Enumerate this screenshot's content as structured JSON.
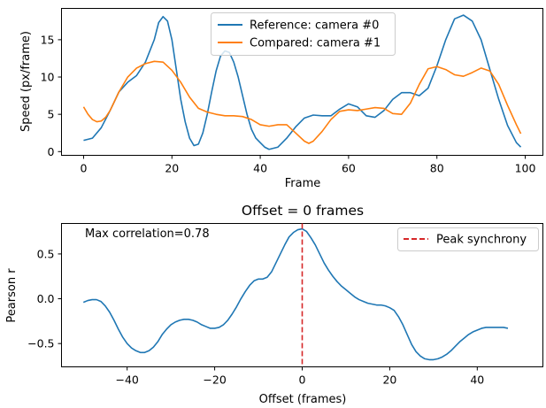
{
  "chart_data": [
    {
      "type": "line",
      "title": "",
      "xlabel": "Frame",
      "ylabel": "Speed (px/frame)",
      "xlim": [
        -5,
        104
      ],
      "ylim": [
        -0.5,
        19.2
      ],
      "xticks": [
        0,
        20,
        40,
        60,
        80,
        100
      ],
      "yticks": [
        0,
        5,
        10,
        15
      ],
      "grid": false,
      "legend_position": "top-center",
      "series": [
        {
          "name": "Reference: camera #0",
          "color": "#1f77b4",
          "points": [
            [
              0,
              1.5
            ],
            [
              2,
              1.8
            ],
            [
              4,
              3.2
            ],
            [
              6,
              5.5
            ],
            [
              8,
              8.0
            ],
            [
              10,
              9.3
            ],
            [
              12,
              10.2
            ],
            [
              14,
              12.0
            ],
            [
              16,
              15.0
            ],
            [
              17,
              17.3
            ],
            [
              18,
              18.1
            ],
            [
              19,
              17.5
            ],
            [
              20,
              15.0
            ],
            [
              21,
              11.0
            ],
            [
              22,
              7.0
            ],
            [
              23,
              4.0
            ],
            [
              24,
              1.8
            ],
            [
              25,
              0.8
            ],
            [
              26,
              1.0
            ],
            [
              27,
              2.5
            ],
            [
              28,
              5.0
            ],
            [
              29,
              8.0
            ],
            [
              30,
              10.8
            ],
            [
              31,
              12.8
            ],
            [
              32,
              13.5
            ],
            [
              33,
              13.3
            ],
            [
              34,
              12.0
            ],
            [
              35,
              10.0
            ],
            [
              36,
              7.5
            ],
            [
              37,
              5.0
            ],
            [
              38,
              3.0
            ],
            [
              39,
              1.8
            ],
            [
              40,
              1.2
            ],
            [
              41,
              0.6
            ],
            [
              42,
              0.3
            ],
            [
              44,
              0.6
            ],
            [
              46,
              1.8
            ],
            [
              48,
              3.3
            ],
            [
              50,
              4.5
            ],
            [
              52,
              4.9
            ],
            [
              54,
              4.8
            ],
            [
              56,
              4.8
            ],
            [
              58,
              5.7
            ],
            [
              60,
              6.4
            ],
            [
              62,
              6.0
            ],
            [
              64,
              4.8
            ],
            [
              66,
              4.6
            ],
            [
              68,
              5.5
            ],
            [
              70,
              7.0
            ],
            [
              72,
              7.9
            ],
            [
              74,
              7.9
            ],
            [
              76,
              7.5
            ],
            [
              78,
              8.5
            ],
            [
              80,
              11.5
            ],
            [
              82,
              15.0
            ],
            [
              84,
              17.8
            ],
            [
              86,
              18.3
            ],
            [
              88,
              17.5
            ],
            [
              90,
              15.0
            ],
            [
              92,
              11.0
            ],
            [
              94,
              7.0
            ],
            [
              96,
              3.5
            ],
            [
              98,
              1.2
            ],
            [
              99,
              0.6
            ]
          ]
        },
        {
          "name": "Compared: camera #1",
          "color": "#ff7f0e",
          "points": [
            [
              0,
              6.0
            ],
            [
              1,
              5.0
            ],
            [
              2,
              4.3
            ],
            [
              3,
              4.0
            ],
            [
              4,
              4.1
            ],
            [
              5,
              4.6
            ],
            [
              6,
              5.5
            ],
            [
              8,
              8.0
            ],
            [
              10,
              10.0
            ],
            [
              12,
              11.2
            ],
            [
              14,
              11.8
            ],
            [
              16,
              12.1
            ],
            [
              18,
              12.0
            ],
            [
              20,
              10.9
            ],
            [
              22,
              9.3
            ],
            [
              24,
              7.3
            ],
            [
              26,
              5.8
            ],
            [
              28,
              5.3
            ],
            [
              30,
              5.0
            ],
            [
              32,
              4.8
            ],
            [
              34,
              4.8
            ],
            [
              36,
              4.7
            ],
            [
              38,
              4.3
            ],
            [
              40,
              3.6
            ],
            [
              42,
              3.4
            ],
            [
              44,
              3.6
            ],
            [
              46,
              3.6
            ],
            [
              48,
              2.5
            ],
            [
              50,
              1.4
            ],
            [
              51,
              1.1
            ],
            [
              52,
              1.4
            ],
            [
              54,
              2.7
            ],
            [
              56,
              4.3
            ],
            [
              58,
              5.4
            ],
            [
              60,
              5.6
            ],
            [
              62,
              5.5
            ],
            [
              64,
              5.7
            ],
            [
              66,
              5.9
            ],
            [
              68,
              5.8
            ],
            [
              70,
              5.1
            ],
            [
              72,
              5.0
            ],
            [
              74,
              6.5
            ],
            [
              76,
              9.0
            ],
            [
              78,
              11.1
            ],
            [
              80,
              11.4
            ],
            [
              82,
              11.0
            ],
            [
              84,
              10.3
            ],
            [
              86,
              10.1
            ],
            [
              88,
              10.6
            ],
            [
              90,
              11.2
            ],
            [
              92,
              10.8
            ],
            [
              94,
              9.0
            ],
            [
              96,
              6.2
            ],
            [
              98,
              3.6
            ],
            [
              99,
              2.4
            ]
          ]
        }
      ]
    },
    {
      "type": "line",
      "title": "Offset = 0 frames",
      "xlabel": "Offset (frames)",
      "ylabel": "Pearson r",
      "xlim": [
        -55,
        55
      ],
      "ylim": [
        -0.76,
        0.84
      ],
      "xticks": [
        -40,
        -20,
        0,
        20,
        40
      ],
      "xtick_labels": [
        "−40",
        "−20",
        "0",
        "20",
        "40"
      ],
      "yticks": [
        0.5,
        0.0,
        -0.5
      ],
      "ytick_labels": [
        "0.5",
        "0.0",
        "−0.5"
      ],
      "grid": false,
      "legend_position": "top-right",
      "annotation": "Max correlation=0.78",
      "series": [
        {
          "name": "",
          "color": "#1f77b4",
          "points": [
            [
              -50,
              -0.04
            ],
            [
              -49,
              -0.02
            ],
            [
              -48,
              -0.01
            ],
            [
              -47,
              -0.01
            ],
            [
              -46,
              -0.03
            ],
            [
              -45,
              -0.08
            ],
            [
              -44,
              -0.15
            ],
            [
              -43,
              -0.24
            ],
            [
              -42,
              -0.34
            ],
            [
              -41,
              -0.43
            ],
            [
              -40,
              -0.5
            ],
            [
              -39,
              -0.55
            ],
            [
              -38,
              -0.58
            ],
            [
              -37,
              -0.6
            ],
            [
              -36,
              -0.6
            ],
            [
              -35,
              -0.58
            ],
            [
              -34,
              -0.54
            ],
            [
              -33,
              -0.48
            ],
            [
              -32,
              -0.4
            ],
            [
              -31,
              -0.34
            ],
            [
              -30,
              -0.29
            ],
            [
              -29,
              -0.26
            ],
            [
              -28,
              -0.24
            ],
            [
              -27,
              -0.23
            ],
            [
              -26,
              -0.23
            ],
            [
              -25,
              -0.24
            ],
            [
              -24,
              -0.26
            ],
            [
              -23,
              -0.29
            ],
            [
              -22,
              -0.31
            ],
            [
              -21,
              -0.33
            ],
            [
              -20,
              -0.33
            ],
            [
              -19,
              -0.32
            ],
            [
              -18,
              -0.29
            ],
            [
              -17,
              -0.24
            ],
            [
              -16,
              -0.17
            ],
            [
              -15,
              -0.09
            ],
            [
              -14,
              0.0
            ],
            [
              -13,
              0.08
            ],
            [
              -12,
              0.15
            ],
            [
              -11,
              0.2
            ],
            [
              -10,
              0.22
            ],
            [
              -9,
              0.22
            ],
            [
              -8,
              0.24
            ],
            [
              -7,
              0.3
            ],
            [
              -6,
              0.4
            ],
            [
              -5,
              0.5
            ],
            [
              -4,
              0.6
            ],
            [
              -3,
              0.69
            ],
            [
              -2,
              0.74
            ],
            [
              -1,
              0.77
            ],
            [
              0,
              0.78
            ],
            [
              1,
              0.75
            ],
            [
              2,
              0.68
            ],
            [
              3,
              0.6
            ],
            [
              4,
              0.5
            ],
            [
              5,
              0.4
            ],
            [
              6,
              0.32
            ],
            [
              7,
              0.25
            ],
            [
              8,
              0.19
            ],
            [
              9,
              0.14
            ],
            [
              10,
              0.1
            ],
            [
              11,
              0.06
            ],
            [
              12,
              0.02
            ],
            [
              13,
              -0.01
            ],
            [
              14,
              -0.03
            ],
            [
              15,
              -0.05
            ],
            [
              16,
              -0.06
            ],
            [
              17,
              -0.07
            ],
            [
              18,
              -0.07
            ],
            [
              19,
              -0.08
            ],
            [
              20,
              -0.1
            ],
            [
              21,
              -0.13
            ],
            [
              22,
              -0.2
            ],
            [
              23,
              -0.29
            ],
            [
              24,
              -0.4
            ],
            [
              25,
              -0.51
            ],
            [
              26,
              -0.59
            ],
            [
              27,
              -0.64
            ],
            [
              28,
              -0.67
            ],
            [
              29,
              -0.68
            ],
            [
              30,
              -0.68
            ],
            [
              31,
              -0.67
            ],
            [
              32,
              -0.65
            ],
            [
              33,
              -0.62
            ],
            [
              34,
              -0.58
            ],
            [
              35,
              -0.53
            ],
            [
              36,
              -0.48
            ],
            [
              37,
              -0.44
            ],
            [
              38,
              -0.4
            ],
            [
              39,
              -0.37
            ],
            [
              40,
              -0.35
            ],
            [
              41,
              -0.33
            ],
            [
              42,
              -0.32
            ],
            [
              43,
              -0.32
            ],
            [
              44,
              -0.32
            ],
            [
              45,
              -0.32
            ],
            [
              46,
              -0.32
            ],
            [
              47,
              -0.33
            ]
          ]
        },
        {
          "name": "Peak synchrony",
          "color": "#d62728",
          "style": "dashed",
          "vline_x": 0
        }
      ]
    }
  ]
}
